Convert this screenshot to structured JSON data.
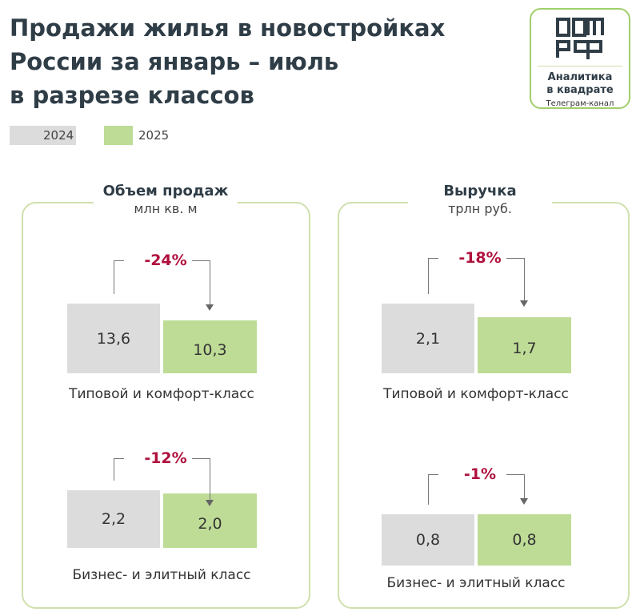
{
  "title": [
    "Продажи жилья в новостройках",
    "России за январь – июль",
    "в разрезе классов"
  ],
  "logo": {
    "brand": "ДОМ РФ",
    "name1": "Аналитика",
    "name2": "в квадрате",
    "channel": "Телеграм-канал"
  },
  "colors": {
    "y2024": "#dcdcdc",
    "y2025": "#bedc96",
    "change": "#b0103c"
  },
  "chart_data": [
    {
      "type": "bar",
      "title": "Объем продаж",
      "unit": "млн кв. м",
      "legend": [
        "2024",
        "2025"
      ],
      "categories": [
        "Типовой и комфорт-класс",
        "Бизнес- и элитный класс"
      ],
      "series": [
        {
          "name": "2024",
          "values": [
            "13,6",
            "2,2"
          ]
        },
        {
          "name": "2025",
          "values": [
            "10,3",
            "2,0"
          ]
        }
      ],
      "changes": [
        "-24%",
        "-12%"
      ]
    },
    {
      "type": "bar",
      "title": "Выручка",
      "unit": "трлн руб.",
      "legend": [
        "2024",
        "2025"
      ],
      "categories": [
        "Типовой и комфорт-класс",
        "Бизнес- и элитный класс"
      ],
      "series": [
        {
          "name": "2024",
          "values": [
            "2,1",
            "0,8"
          ]
        },
        {
          "name": "2025",
          "values": [
            "1,7",
            "0,8"
          ]
        }
      ],
      "changes": [
        "-18%",
        "-1%"
      ]
    }
  ]
}
